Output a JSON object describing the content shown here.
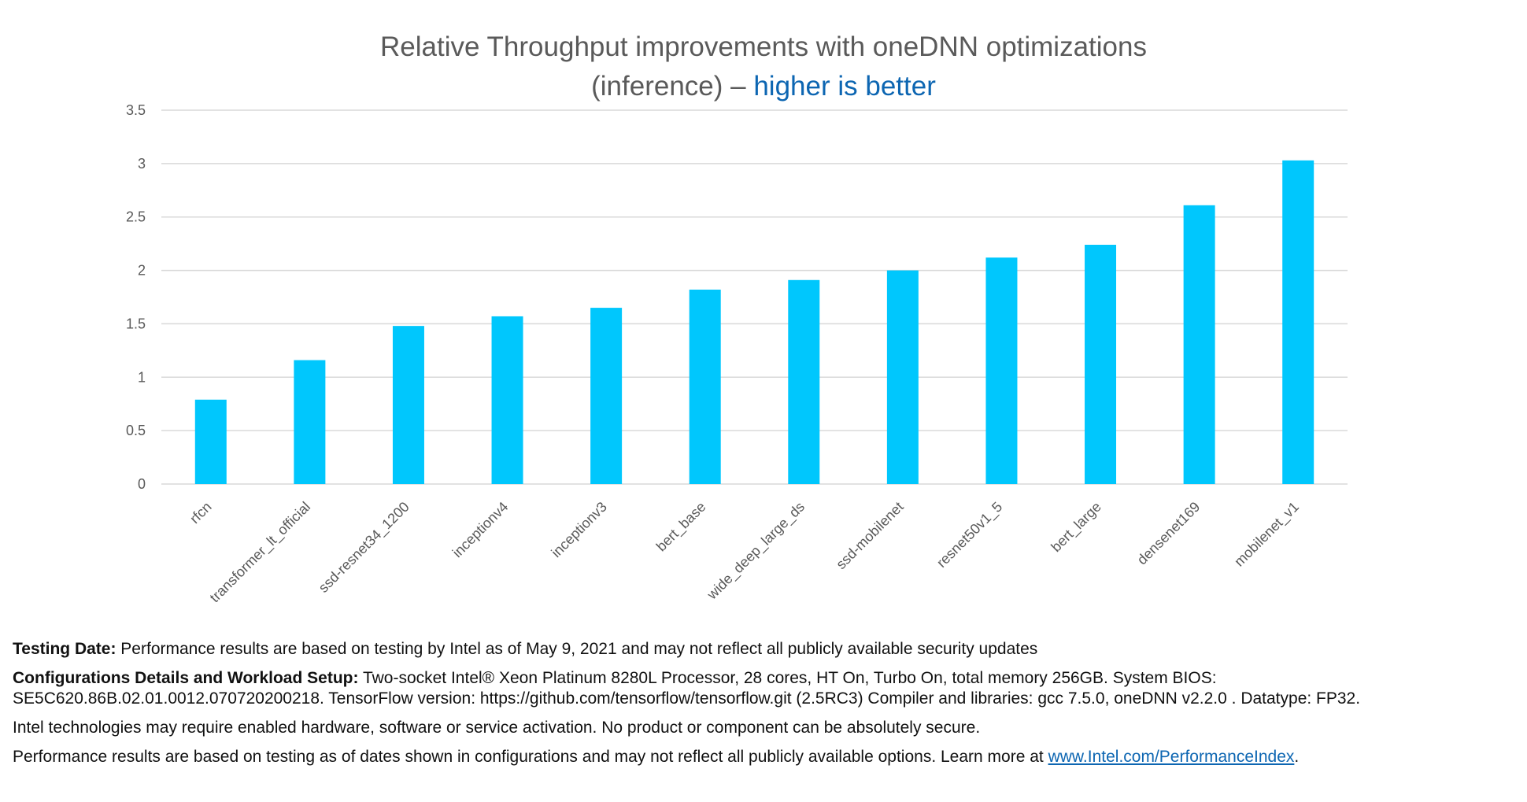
{
  "title": {
    "line1": "Relative Throughput improvements with oneDNN optimizations",
    "line2_prefix": "(inference) – ",
    "line2_highlight": "higher is better"
  },
  "chart_data": {
    "type": "bar",
    "categories": [
      "rfcn",
      "transformer_lt_official",
      "ssd-resnet34_1200",
      "inceptionv4",
      "inceptionv3",
      "bert_base",
      "wide_deep_large_ds",
      "ssd-mobilenet",
      "resnet50v1_5",
      "bert_large",
      "densenet169",
      "mobilenet_v1"
    ],
    "values": [
      0.79,
      1.16,
      1.48,
      1.57,
      1.65,
      1.82,
      1.91,
      2.0,
      2.12,
      2.24,
      2.61,
      3.03
    ],
    "ylim": [
      0,
      3.5
    ],
    "yticks": [
      0,
      0.5,
      1,
      1.5,
      2,
      2.5,
      3,
      3.5
    ],
    "ytick_labels": [
      "0",
      "0.5",
      "1",
      "1.5",
      "2",
      "2.5",
      "3",
      "3.5"
    ],
    "grid": true,
    "bar_color": "#00c7fd",
    "grid_color": "#d9d9d9"
  },
  "notes": {
    "testing_label": "Testing Date:",
    "testing_text": " Performance results are based on testing by Intel as of May 9, 2021 and may not reflect all publicly available security updates",
    "config_label": "Configurations Details and Workload Setup:",
    "config_text": " Two-socket Intel® Xeon Platinum 8280L Processor, 28 cores, HT On, Turbo On, total memory 256GB. System BIOS: SE5C620.86B.02.01.0012.070720200218. TensorFlow version: https://github.com/tensorflow/tensorflow.git (2.5RC3) Compiler and libraries: gcc 7.5.0, oneDNN v2.2.0 . Datatype: FP32.",
    "tech_text": "Intel technologies may require enabled hardware, software or service activation. No product or component can be absolutely secure.",
    "perf_text": "Performance results are based on testing as of dates shown in configurations and may not reflect all publicly available options. Learn more at ",
    "perf_link": "www.Intel.com/PerformanceIndex",
    "perf_end": "."
  }
}
